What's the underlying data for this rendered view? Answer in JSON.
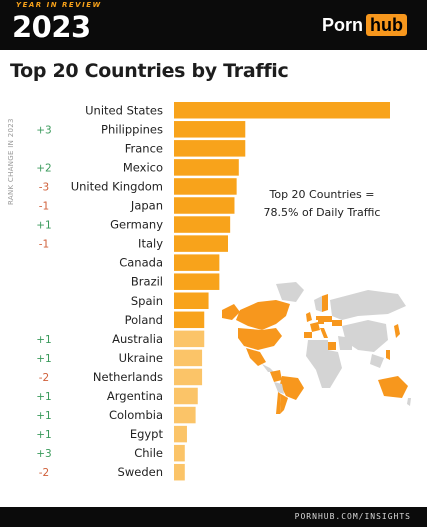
{
  "header": {
    "badge_top": "YEAR IN REVIEW",
    "year": "2023",
    "logo_part1": "Porn",
    "logo_part2": "hub"
  },
  "title": "Top 20 Countries by Traffic",
  "side_label": "RANK CHANGE IN 2023",
  "callout": {
    "line1": "Top 20 Countries =",
    "line2": "78.5% of Daily Traffic"
  },
  "footer": "PORNHUB.COM/INSIGHTS",
  "colors": {
    "bar_strong": "#f8a31b",
    "bar_light": "#fbc468",
    "positive": "#3a9a5b",
    "negative": "#d0603a",
    "map_highlight": "#f7971d",
    "map_base": "#d4d4d4"
  },
  "chart_data": {
    "type": "bar",
    "orientation": "horizontal",
    "categories": [
      "United States",
      "Philippines",
      "France",
      "Mexico",
      "United Kingdom",
      "Japan",
      "Germany",
      "Italy",
      "Canada",
      "Brazil",
      "Spain",
      "Poland",
      "Australia",
      "Ukraine",
      "Netherlands",
      "Argentina",
      "Colombia",
      "Egypt",
      "Chile",
      "Sweden"
    ],
    "values": [
      100,
      33,
      33,
      30,
      29,
      28,
      26,
      25,
      21,
      21,
      16,
      14,
      14,
      13,
      13,
      11,
      10,
      6,
      5,
      5
    ],
    "rank_change": [
      "",
      "+3",
      "",
      "+2",
      "-3",
      "-1",
      "+1",
      "-1",
      "",
      "",
      "",
      "",
      "+1",
      "+1",
      "-2",
      "+1",
      "+1",
      "+1",
      "+3",
      "-2"
    ],
    "title": "Top 20 Countries by Traffic",
    "xlabel": "",
    "ylabel": "RANK CHANGE IN 2023",
    "grid": false
  }
}
